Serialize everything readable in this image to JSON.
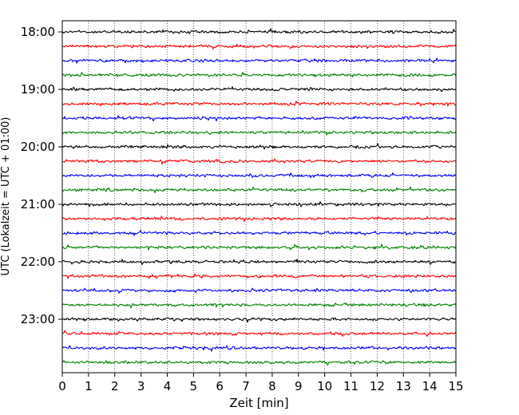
{
  "chart_data": {
    "type": "line",
    "xlabel": "Zeit  [min]",
    "ylabel": "UTC (Lokalzeit = UTC + 01:00)",
    "xlim": [
      0,
      15
    ],
    "x_ticks": [
      "0",
      "1",
      "2",
      "3",
      "4",
      "5",
      "6",
      "7",
      "8",
      "9",
      "10",
      "11",
      "12",
      "13",
      "14",
      "15"
    ],
    "y_tick_labels": [
      "18:00",
      "19:00",
      "20:00",
      "21:00",
      "22:00",
      "23:00"
    ],
    "trace_start_time": "18:00",
    "trace_interval_minutes": 15,
    "trace_count": 24,
    "trace_colors": [
      "#000000",
      "#ff0000",
      "#0000ff",
      "#008000"
    ],
    "grid": "vertical dotted at each minute"
  }
}
